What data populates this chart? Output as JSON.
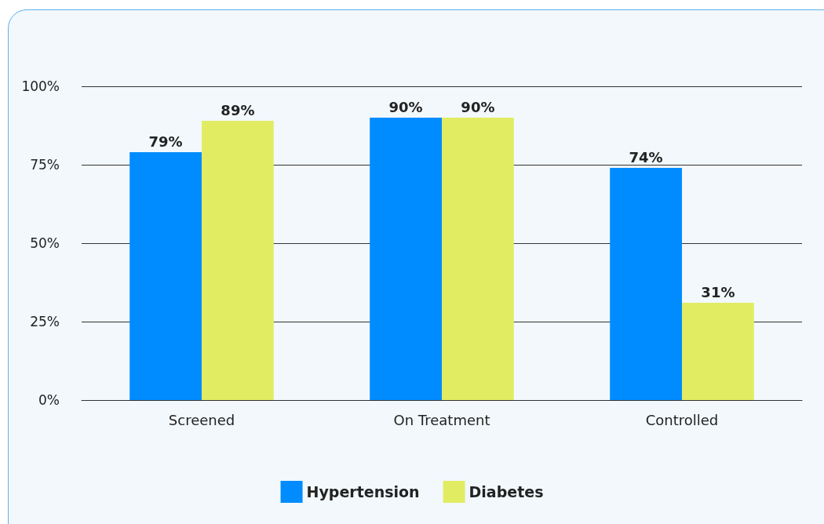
{
  "chart_data": {
    "type": "bar",
    "categories": [
      "Screened",
      "On Treatment",
      "Controlled"
    ],
    "series": [
      {
        "name": "Hypertension",
        "color": "#008cff",
        "values": [
          79,
          90,
          74
        ],
        "value_labels": [
          "79%",
          "90%",
          "74%"
        ]
      },
      {
        "name": "Diabetes",
        "color": "#e2ec63",
        "values": [
          89,
          90,
          31
        ],
        "value_labels": [
          "89%",
          "90%",
          "31%"
        ]
      }
    ],
    "ylim": [
      0,
      100
    ],
    "yticks": [
      {
        "value": 0,
        "label": "0%"
      },
      {
        "value": 25,
        "label": "25%"
      },
      {
        "value": 50,
        "label": "50%"
      },
      {
        "value": 75,
        "label": "75%"
      },
      {
        "value": 100,
        "label": "100%"
      }
    ],
    "grid": "y",
    "legend": "bottom"
  }
}
